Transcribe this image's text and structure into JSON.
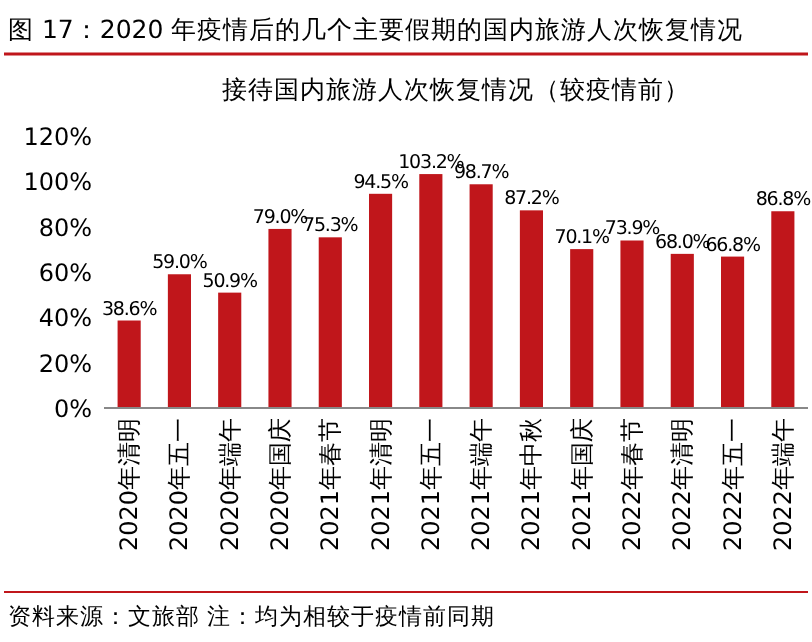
{
  "chart_data": {
    "type": "bar",
    "title": "图 17：2020 年疫情后的几个主要假期的国内旅游人次恢复情况",
    "subtitle": "接待国内旅游人次恢复情况（较疫情前）",
    "categories": [
      "2020年清明",
      "2020年五一",
      "2020年端午",
      "2020年国庆",
      "2021年春节",
      "2021年清明",
      "2021年五一",
      "2021年端午",
      "2021年中秋",
      "2021年国庆",
      "2022年春节",
      "2022年清明",
      "2022年五一",
      "2022年端午"
    ],
    "values": [
      38.6,
      59.0,
      50.9,
      79.0,
      75.3,
      94.5,
      103.2,
      98.7,
      87.2,
      70.1,
      73.9,
      68.0,
      66.8,
      86.8
    ],
    "value_labels": [
      "38.6%",
      "59.0%",
      "50.9%",
      "79.0%",
      "75.3%",
      "94.5%",
      "103.2%",
      "98.7%",
      "87.2%",
      "70.1%",
      "73.9%",
      "68.0%",
      "66.8%",
      "86.8%"
    ],
    "color": "#c0161b",
    "ylim": [
      0,
      120
    ],
    "yticks": [
      {
        "value": 0,
        "label": "0%"
      },
      {
        "value": 20,
        "label": "20%"
      },
      {
        "value": 40,
        "label": "40%"
      },
      {
        "value": 60,
        "label": "60%"
      },
      {
        "value": 80,
        "label": "80%"
      },
      {
        "value": 100,
        "label": "100%"
      },
      {
        "value": 120,
        "label": "120%"
      }
    ],
    "annotations": [
      "资料来源：文旅部 注：均为相较于疫情前同期"
    ]
  }
}
